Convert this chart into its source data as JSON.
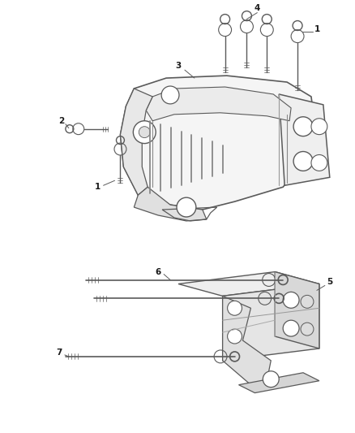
{
  "background_color": "#ffffff",
  "line_color": "#5a5a5a",
  "label_color": "#1a1a1a",
  "fig_width": 4.38,
  "fig_height": 5.33,
  "dpi": 100,
  "label_fontsize": 7.5
}
